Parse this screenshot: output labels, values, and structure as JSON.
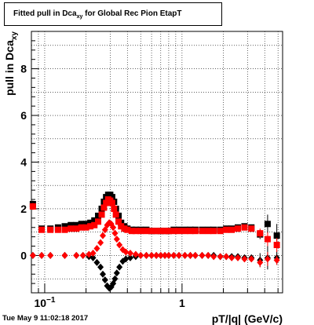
{
  "title": {
    "prefix": "Fitted pull in Dca",
    "subscript": "xy",
    "suffix": " for Global Rec Pion EtapT"
  },
  "footer": "Tue May  9 11:02:18 2017",
  "chart_data": {
    "type": "scatter",
    "title": "Fitted pull in Dca_xy for Global Rec Pion EtapT",
    "xlabel": "pT/|q| (GeV/c)",
    "ylabel": "pull in Dca_xy",
    "x_scale": "log",
    "xlim": [
      0.08,
      5.4
    ],
    "ylim": [
      -1.6,
      9.6
    ],
    "x_tick_labels": [
      {
        "value": 0.1,
        "label": "10",
        "exponent": "−1"
      },
      {
        "value": 1,
        "label": "1"
      }
    ],
    "y_tick_labels": [
      {
        "value": 0,
        "label": "0"
      },
      {
        "value": 2,
        "label": "2"
      },
      {
        "value": 4,
        "label": "4"
      },
      {
        "value": 6,
        "label": "6"
      },
      {
        "value": 8,
        "label": "8"
      }
    ],
    "grid": true,
    "series": [
      {
        "role": "black-sigma",
        "color": "#000000",
        "marker": "square",
        "x": [
          0.082,
          0.095,
          0.11,
          0.125,
          0.14,
          0.155,
          0.17,
          0.185,
          0.2,
          0.215,
          0.23,
          0.245,
          0.26,
          0.27,
          0.28,
          0.29,
          0.3,
          0.31,
          0.32,
          0.33,
          0.345,
          0.36,
          0.38,
          0.4,
          0.43,
          0.46,
          0.5,
          0.55,
          0.6,
          0.65,
          0.7,
          0.75,
          0.8,
          0.87,
          0.95,
          1.05,
          1.15,
          1.25,
          1.4,
          1.55,
          1.7,
          1.9,
          2.1,
          2.3,
          2.55,
          2.85,
          3.2,
          3.7,
          4.2,
          4.9
        ],
        "y": [
          2.2,
          1.15,
          1.15,
          1.2,
          1.25,
          1.3,
          1.3,
          1.35,
          1.35,
          1.4,
          1.5,
          1.7,
          2.0,
          2.3,
          2.5,
          2.6,
          2.6,
          2.5,
          2.3,
          2.0,
          1.7,
          1.4,
          1.25,
          1.15,
          1.1,
          1.1,
          1.1,
          1.1,
          1.05,
          1.05,
          1.05,
          1.05,
          1.05,
          1.1,
          1.1,
          1.1,
          1.1,
          1.1,
          1.1,
          1.1,
          1.1,
          1.1,
          1.15,
          1.15,
          1.2,
          1.25,
          1.2,
          0.9,
          1.35,
          0.85
        ],
        "err": [
          0.15,
          0.05,
          0,
          0,
          0,
          0,
          0,
          0,
          0,
          0,
          0,
          0,
          0,
          0,
          0,
          0,
          0,
          0,
          0,
          0,
          0,
          0,
          0,
          0,
          0,
          0,
          0,
          0,
          0,
          0,
          0,
          0,
          0,
          0,
          0,
          0,
          0,
          0,
          0,
          0,
          0,
          0,
          0,
          0,
          0,
          0.1,
          0,
          0.2,
          0.4,
          0.5
        ]
      },
      {
        "role": "black-mean",
        "color": "#000000",
        "marker": "diamond",
        "x": [
          0.082,
          0.095,
          0.11,
          0.14,
          0.17,
          0.19,
          0.21,
          0.225,
          0.24,
          0.255,
          0.265,
          0.275,
          0.285,
          0.295,
          0.305,
          0.315,
          0.325,
          0.335,
          0.35,
          0.37,
          0.39,
          0.42,
          0.46,
          0.5,
          0.55,
          0.6,
          0.65,
          0.7,
          0.75,
          0.8,
          0.87,
          0.95,
          1.05,
          1.15,
          1.25,
          1.4,
          1.55,
          1.7,
          1.9,
          2.1,
          2.3,
          2.55,
          2.85,
          3.2,
          3.7,
          4.2,
          4.9
        ],
        "y": [
          0,
          0,
          0,
          0,
          0,
          0,
          -0.05,
          -0.1,
          -0.3,
          -0.5,
          -0.8,
          -1.05,
          -1.3,
          -1.4,
          -1.35,
          -1.2,
          -1.0,
          -0.75,
          -0.5,
          -0.25,
          -0.15,
          -0.1,
          -0.05,
          0,
          0,
          0,
          0,
          0,
          0,
          0,
          0,
          0,
          0,
          0,
          0,
          0,
          0,
          0,
          -0.05,
          -0.05,
          -0.05,
          -0.05,
          -0.1,
          -0.1,
          -0.2,
          -0.1,
          -0.1
        ],
        "err": [
          0,
          0,
          0,
          0,
          0,
          0,
          0,
          0,
          0,
          0,
          0,
          0,
          0,
          0,
          0,
          0,
          0,
          0,
          0,
          0,
          0,
          0,
          0,
          0,
          0,
          0,
          0,
          0,
          0,
          0,
          0,
          0,
          0,
          0,
          0,
          0,
          0,
          0,
          0,
          0,
          0,
          0,
          0,
          0,
          0.3,
          0.5,
          0.3
        ]
      },
      {
        "role": "red-sigma",
        "color": "#ff0000",
        "marker": "square",
        "x": [
          0.082,
          0.095,
          0.11,
          0.125,
          0.14,
          0.155,
          0.17,
          0.185,
          0.2,
          0.215,
          0.23,
          0.245,
          0.26,
          0.27,
          0.28,
          0.29,
          0.3,
          0.31,
          0.32,
          0.33,
          0.345,
          0.36,
          0.38,
          0.4,
          0.43,
          0.46,
          0.5,
          0.55,
          0.6,
          0.65,
          0.7,
          0.75,
          0.8,
          0.87,
          0.95,
          1.05,
          1.15,
          1.25,
          1.4,
          1.55,
          1.7,
          1.9,
          2.1,
          2.3,
          2.55,
          2.85,
          3.2,
          3.7,
          4.2,
          4.9
        ],
        "y": [
          2.1,
          1.1,
          1.1,
          1.1,
          1.1,
          1.15,
          1.15,
          1.2,
          1.2,
          1.25,
          1.3,
          1.45,
          1.75,
          2.05,
          2.25,
          2.4,
          2.35,
          2.25,
          2.0,
          1.75,
          1.45,
          1.25,
          1.15,
          1.1,
          1.05,
          1.05,
          1.05,
          1.05,
          1.05,
          1.05,
          1.05,
          1.05,
          1.05,
          1.05,
          1.05,
          1.05,
          1.05,
          1.05,
          1.05,
          1.05,
          1.05,
          1.05,
          1.1,
          1.1,
          1.15,
          1.2,
          1.15,
          0.95,
          0.7,
          0.45
        ],
        "err": [
          0.15,
          0.05,
          0,
          0,
          0,
          0,
          0,
          0,
          0,
          0,
          0,
          0,
          0,
          0,
          0,
          0,
          0,
          0,
          0,
          0,
          0,
          0,
          0,
          0,
          0,
          0,
          0,
          0,
          0,
          0,
          0,
          0,
          0,
          0,
          0,
          0,
          0,
          0,
          0,
          0,
          0,
          0,
          0,
          0,
          0,
          0.1,
          0,
          0.2,
          0.3,
          0.3
        ]
      },
      {
        "role": "red-mean",
        "color": "#ff0000",
        "marker": "diamond",
        "x": [
          0.082,
          0.095,
          0.11,
          0.14,
          0.17,
          0.19,
          0.21,
          0.225,
          0.24,
          0.255,
          0.265,
          0.275,
          0.285,
          0.295,
          0.305,
          0.315,
          0.325,
          0.335,
          0.35,
          0.37,
          0.39,
          0.42,
          0.46,
          0.5,
          0.55,
          0.6,
          0.65,
          0.7,
          0.75,
          0.8,
          0.87,
          0.95,
          1.05,
          1.15,
          1.25,
          1.4,
          1.55,
          1.7,
          1.9,
          2.1,
          2.3,
          2.55,
          2.85,
          3.2,
          3.7,
          4.2,
          4.9
        ],
        "y": [
          0,
          0,
          0,
          0,
          0,
          0,
          0.05,
          0.1,
          0.3,
          0.55,
          0.85,
          1.1,
          1.3,
          1.4,
          1.35,
          1.2,
          0.95,
          0.7,
          0.45,
          0.25,
          0.15,
          0.1,
          0.05,
          0,
          0,
          0,
          0,
          0,
          0,
          0,
          0,
          0,
          0,
          0,
          0,
          0,
          0,
          -0.05,
          -0.05,
          -0.05,
          -0.1,
          -0.1,
          -0.15,
          -0.15,
          -0.3,
          -0.15,
          -0.2
        ],
        "err": [
          0,
          0,
          0,
          0,
          0,
          0,
          0,
          0,
          0,
          0,
          0,
          0,
          0,
          0,
          0,
          0,
          0,
          0,
          0,
          0,
          0,
          0,
          0,
          0,
          0,
          0,
          0,
          0,
          0,
          0,
          0,
          0,
          0,
          0,
          0,
          0,
          0,
          0,
          0,
          0,
          0,
          0,
          0,
          0,
          0.2,
          0.3,
          0.2
        ]
      }
    ]
  }
}
